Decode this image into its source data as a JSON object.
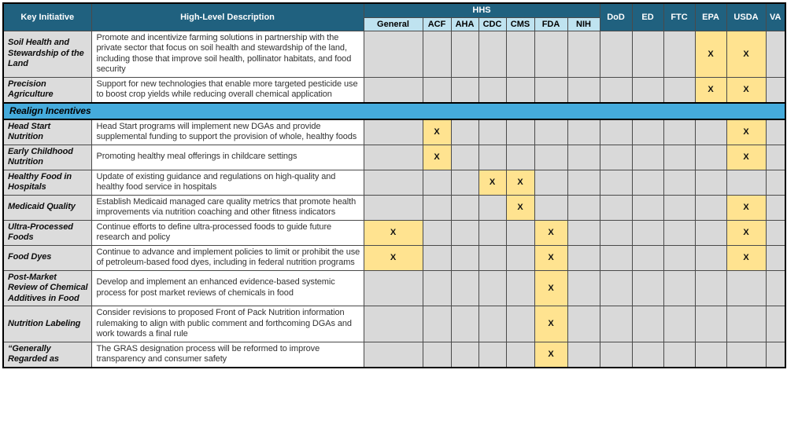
{
  "table": {
    "mark_glyph": "X",
    "header": {
      "key_initiative": "Key Initiative",
      "description": "High-Level Description",
      "hhs_group": "HHS",
      "hhs_sub_columns": [
        "General",
        "ACF",
        "AHA",
        "CDC",
        "CMS",
        "FDA",
        "NIH"
      ],
      "agency_columns": [
        "DoD",
        "ED",
        "FTC",
        "EPA",
        "USDA",
        "VA"
      ]
    },
    "rows": [
      {
        "initiative": "Soil Health and Stewardship of the Land",
        "description": "Promote and incentivize farming solutions in partnership with the private sector that focus on soil health and stewardship of the land, including those that improve soil health, pollinator habitats, and food security",
        "marks": [
          "EPA",
          "USDA"
        ]
      },
      {
        "initiative": "Precision Agriculture",
        "description": "Support for new technologies that enable more targeted pesticide use to boost crop yields while reducing overall chemical application",
        "marks": [
          "EPA",
          "USDA"
        ]
      },
      {
        "section": "Realign Incentives"
      },
      {
        "initiative": "Head Start Nutrition",
        "description": "Head Start programs will implement new DGAs and provide supplemental funding to support the provision of whole, healthy foods",
        "marks": [
          "ACF",
          "USDA"
        ]
      },
      {
        "initiative": "Early Childhood Nutrition",
        "description": "Promoting healthy meal offerings in childcare settings",
        "marks": [
          "ACF",
          "USDA"
        ]
      },
      {
        "initiative": "Healthy Food in Hospitals",
        "description": "Update of existing guidance and regulations on high-quality and healthy food service in hospitals",
        "marks": [
          "CDC",
          "CMS"
        ]
      },
      {
        "initiative": "Medicaid Quality",
        "description": "Establish Medicaid managed care quality metrics that promote health improvements via nutrition coaching and other fitness indicators",
        "marks": [
          "CMS",
          "USDA"
        ]
      },
      {
        "initiative": "Ultra-Processed Foods",
        "description": "Continue efforts to define ultra-processed foods to guide future research and policy",
        "marks": [
          "General",
          "FDA",
          "USDA"
        ]
      },
      {
        "initiative": "Food Dyes",
        "description": "Continue to advance and implement policies to limit or prohibit the use of petroleum-based food dyes, including in federal nutrition programs",
        "marks": [
          "General",
          "FDA",
          "USDA"
        ]
      },
      {
        "initiative": "Post-Market Review of Chemical Additives in Food",
        "description": "Develop and implement an enhanced evidence-based systemic process for post market reviews of chemicals in food",
        "marks": [
          "FDA"
        ]
      },
      {
        "initiative": "Nutrition Labeling",
        "description": "Consider revisions to proposed Front of Pack Nutrition information rulemaking to align with public comment and forthcoming DGAs and work towards a final rule",
        "marks": [
          "FDA"
        ]
      },
      {
        "initiative": "“Generally Regarded as",
        "description": "The GRAS designation process will be reformed to improve transparency and consumer safety",
        "marks": [
          "FDA"
        ]
      }
    ],
    "colors": {
      "header_teal": "#20617F",
      "subheader_blue": "#BFE3F0",
      "section_banner_blue": "#45ABDC",
      "highlight_yellow": "#FFE390",
      "empty_cell_gray": "#D9D9D9",
      "header_text": "#FFFFFF"
    }
  }
}
